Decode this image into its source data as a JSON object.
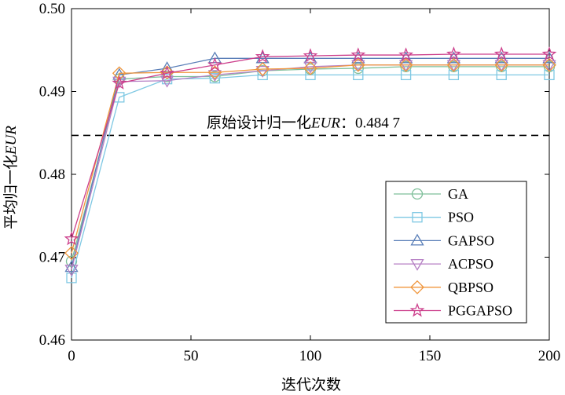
{
  "chart_data": {
    "type": "line",
    "title": "",
    "xlabel": "迭代次数",
    "ylabel_prefix": "平均归一化",
    "ylabel_suffix": "EUR",
    "xlim": [
      0,
      200
    ],
    "ylim": [
      0.46,
      0.5
    ],
    "xticks": [
      0,
      50,
      100,
      150,
      200
    ],
    "xtick_labels": [
      "0",
      "50",
      "100",
      "150",
      "200"
    ],
    "yticks": [
      0.46,
      0.47,
      0.48,
      0.49,
      0.5
    ],
    "ytick_labels": [
      "0.46",
      "0.47",
      "0.48",
      "0.49",
      "0.50"
    ],
    "x": [
      0,
      20,
      40,
      60,
      80,
      100,
      120,
      140,
      160,
      180,
      200
    ],
    "series": [
      {
        "name": "GA",
        "marker": "circle",
        "color": "#7fbf9a",
        "values": [
          0.4695,
          0.4915,
          0.4918,
          0.4918,
          0.4925,
          0.4927,
          0.4928,
          0.493,
          0.493,
          0.493,
          0.493
        ]
      },
      {
        "name": "PSO",
        "marker": "square",
        "color": "#7ec8e3",
        "values": [
          0.4675,
          0.4893,
          0.4915,
          0.4916,
          0.492,
          0.492,
          0.492,
          0.492,
          0.492,
          0.492,
          0.492
        ]
      },
      {
        "name": "GAPSO",
        "marker": "triangle-up",
        "color": "#5a7fb8",
        "values": [
          0.4688,
          0.492,
          0.4928,
          0.494,
          0.494,
          0.494,
          0.494,
          0.494,
          0.494,
          0.494,
          0.494
        ]
      },
      {
        "name": "ACPSO",
        "marker": "triangle-down",
        "color": "#b57fc4",
        "values": [
          0.4685,
          0.4912,
          0.4913,
          0.492,
          0.4925,
          0.493,
          0.4932,
          0.4932,
          0.4932,
          0.4932,
          0.4932
        ]
      },
      {
        "name": "QBPSO",
        "marker": "diamond",
        "color": "#f0963c",
        "values": [
          0.4705,
          0.4922,
          0.4923,
          0.4923,
          0.4927,
          0.4928,
          0.4932,
          0.4932,
          0.4932,
          0.4932,
          0.4932
        ]
      },
      {
        "name": "PGGAPSO",
        "marker": "star",
        "color": "#cc3f8c",
        "values": [
          0.4722,
          0.491,
          0.4922,
          0.4932,
          0.4942,
          0.4943,
          0.4944,
          0.4944,
          0.4945,
          0.4945,
          0.4945
        ]
      }
    ],
    "reference_line": {
      "value": 0.4847,
      "style": "dashed",
      "label_prefix": "原始设计归一化",
      "label_italic": "EUR",
      "label_suffix": "：0.484 7"
    },
    "legend_position": "lower-right",
    "grid": false
  }
}
